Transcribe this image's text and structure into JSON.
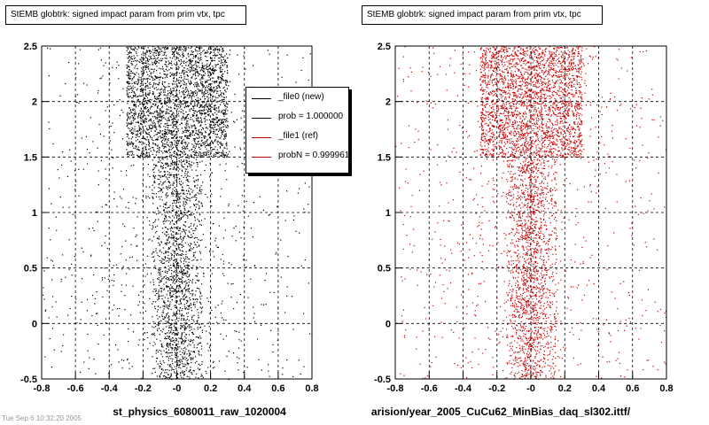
{
  "chart_data": [
    {
      "type": "scatter",
      "title": "StEMB globtrk: signed impact param from prim vtx, tpc",
      "xlabel": "st_physics_6080011_raw_1020004",
      "ylabel": "",
      "xlim": [
        -0.8,
        0.8
      ],
      "ylim": [
        -0.5,
        2.5
      ],
      "x_ticks": [
        "-0.8",
        "-0.6",
        "-0.4",
        "-0.2",
        "-0",
        "0.2",
        "0.4",
        "0.6",
        "0.8"
      ],
      "y_ticks": [
        "-0.5",
        "0",
        "0.5",
        "1",
        "1.5",
        "2",
        "2.5"
      ],
      "grid": true,
      "marker_color": "#000000",
      "legend_position": "top-right",
      "legend": [
        {
          "label": "_file0 (new)",
          "color": "#000000"
        },
        {
          "label": "prob = 1.000000",
          "color": "#000000"
        },
        {
          "label": "_file1 (ref)",
          "color": "#cc0000"
        },
        {
          "label": "probN = 0.999961",
          "color": "#cc0000"
        }
      ],
      "series": [
        {
          "values_description": "dense points concentrated near x=0 with a band at y 1.5-2.5",
          "density_regions": [
            {
              "x": [
                -0.8,
                0.8
              ],
              "y": [
                -0.5,
                2.5
              ],
              "density": 0.35
            },
            {
              "x": [
                -0.3,
                0.3
              ],
              "y": [
                1.5,
                2.5
              ],
              "density": 1.0
            },
            {
              "x": [
                -0.15,
                0.15
              ],
              "y": [
                -0.5,
                1.5
              ],
              "density": 0.6
            }
          ]
        }
      ]
    },
    {
      "type": "scatter",
      "title": "StEMB globtrk: signed impact param from prim vtx, tpc",
      "xlabel": "arision/year_2005_CuCu62_MinBias_daq_sl302.ittf/",
      "ylabel": "",
      "xlim": [
        -0.8,
        0.8
      ],
      "ylim": [
        -0.5,
        2.5
      ],
      "x_ticks": [
        "-0.8",
        "-0.6",
        "-0.4",
        "-0.2",
        "-0",
        "0.2",
        "0.4",
        "0.6",
        "0.8"
      ],
      "y_ticks": [
        "-0.5",
        "0",
        "0.5",
        "1",
        "1.5",
        "2",
        "2.5"
      ],
      "grid": true,
      "marker_color": "#cc0000",
      "series": [
        {
          "values_description": "dense points concentrated near x=0 with a band at y 1.5-2.5",
          "density_regions": [
            {
              "x": [
                -0.8,
                0.8
              ],
              "y": [
                -0.5,
                2.5
              ],
              "density": 0.35
            },
            {
              "x": [
                -0.3,
                0.3
              ],
              "y": [
                1.5,
                2.5
              ],
              "density": 1.0
            },
            {
              "x": [
                -0.15,
                0.15
              ],
              "y": [
                -0.5,
                1.5
              ],
              "density": 0.6
            }
          ]
        }
      ]
    }
  ],
  "footnote": "Tue Sep  6 10:32:20 2005"
}
